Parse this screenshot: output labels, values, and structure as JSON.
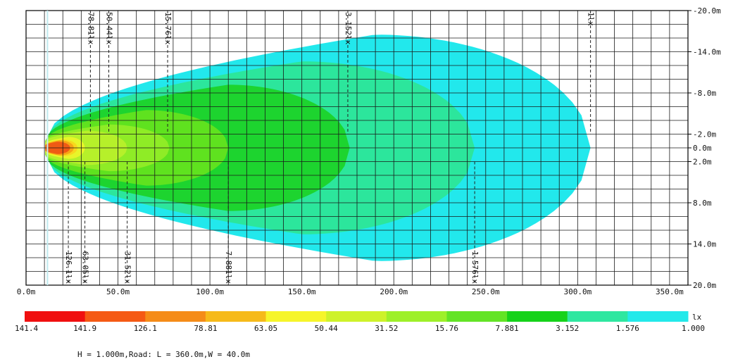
{
  "chart_data": {
    "type": "heatmap",
    "subtype": "illuminance-isolux-plot",
    "x_axis": {
      "range": [
        0,
        360
      ],
      "ticks": [
        {
          "value": 0,
          "label": "0.0m"
        },
        {
          "value": 50,
          "label": "50.0m"
        },
        {
          "value": 100,
          "label": "100.0m"
        },
        {
          "value": 150,
          "label": "150.0m"
        },
        {
          "value": 200,
          "label": "200.0m"
        },
        {
          "value": 250,
          "label": "250.0m"
        },
        {
          "value": 300,
          "label": "300.0m"
        },
        {
          "value": 350,
          "label": "350.0m"
        }
      ],
      "grid_step": 10
    },
    "y_axis": {
      "range": [
        -20,
        20
      ],
      "ticks": [
        {
          "value": -20,
          "label": "-20.0m"
        },
        {
          "value": -14,
          "label": "-14.0m"
        },
        {
          "value": -8,
          "label": "-8.0m"
        },
        {
          "value": -2,
          "label": "-2.0m"
        },
        {
          "value": 0,
          "label": "0.0m"
        },
        {
          "value": 2,
          "label": "2.0m"
        },
        {
          "value": 8,
          "label": "8.0m"
        },
        {
          "value": 14,
          "label": "14.0m"
        },
        {
          "value": 20,
          "label": "20.0m"
        }
      ],
      "grid_step": 2,
      "position": "right"
    },
    "grid": true,
    "source_x": 10.5,
    "zones": [
      {
        "level": 1.0,
        "color": "#22e8ec",
        "x_end": 307,
        "half_width": 16.5,
        "x_peak": 190
      },
      {
        "level": 1.576,
        "color": "#2ce69c",
        "x_end": 244,
        "half_width": 12.6,
        "x_peak": 150
      },
      {
        "level": 3.152,
        "color": "#1dd42f",
        "x_end": 176,
        "half_width": 9.2,
        "x_peak": 110
      },
      {
        "level": 7.881,
        "color": "#5fe21f",
        "x_end": 110,
        "half_width": 5.5,
        "x_peak": 65
      },
      {
        "level": 15.76,
        "color": "#8fec26",
        "x_end": 78,
        "half_width": 3.4,
        "x_peak": 45
      },
      {
        "level": 31.52,
        "color": "#b6f02a",
        "x_end": 55,
        "half_width": 2.5,
        "x_peak": 33
      },
      {
        "level": 50.44,
        "color": "#e8f52a",
        "x_end": 32,
        "half_width": 1.6,
        "x_peak": 23
      },
      {
        "level": 63.05,
        "color": "#f7d81d",
        "x_end": 28,
        "half_width": 1.2,
        "x_peak": 20
      },
      {
        "level": 78.81,
        "color": "#f6a515",
        "x_end": 26,
        "half_width": 1.1,
        "x_peak": 18
      },
      {
        "level": 126.1,
        "color": "#ef5a14",
        "x_end": 24,
        "half_width": 0.9,
        "x_peak": 17
      }
    ],
    "isolux_lines": [
      {
        "x": 35,
        "label": "78.81lx",
        "side": "top"
      },
      {
        "x": 45,
        "label": "50.44lx",
        "side": "top"
      },
      {
        "x": 77,
        "label": "15.76lx",
        "side": "top"
      },
      {
        "x": 175,
        "label": "3.152lx",
        "side": "top"
      },
      {
        "x": 307,
        "label": "1lx",
        "side": "top"
      },
      {
        "x": 23,
        "label": "126.1lx",
        "side": "bottom"
      },
      {
        "x": 32,
        "label": "63.05lx",
        "side": "bottom"
      },
      {
        "x": 55,
        "label": "31.52lx",
        "side": "bottom"
      },
      {
        "x": 110,
        "label": "7.881lx",
        "side": "bottom"
      },
      {
        "x": 244,
        "label": "1.576lx",
        "side": "bottom"
      }
    ],
    "legend": {
      "unit": "lx",
      "placement": "bottom",
      "colors": [
        "#f01010",
        "#f55a14",
        "#f58c18",
        "#f6ba1a",
        "#f6f52a",
        "#cef22a",
        "#9ef029",
        "#63e425",
        "#16d21a",
        "#2fe7a0",
        "#23e9ea"
      ],
      "labels": [
        "141.4",
        "141.9",
        "126.1",
        "78.81",
        "63.05",
        "50.44",
        "31.52",
        "15.76",
        "7.881",
        "3.152",
        "1.576",
        "1.000"
      ]
    },
    "footer": "H = 1.000m,Road: L = 360.0m,W = 40.0m"
  }
}
